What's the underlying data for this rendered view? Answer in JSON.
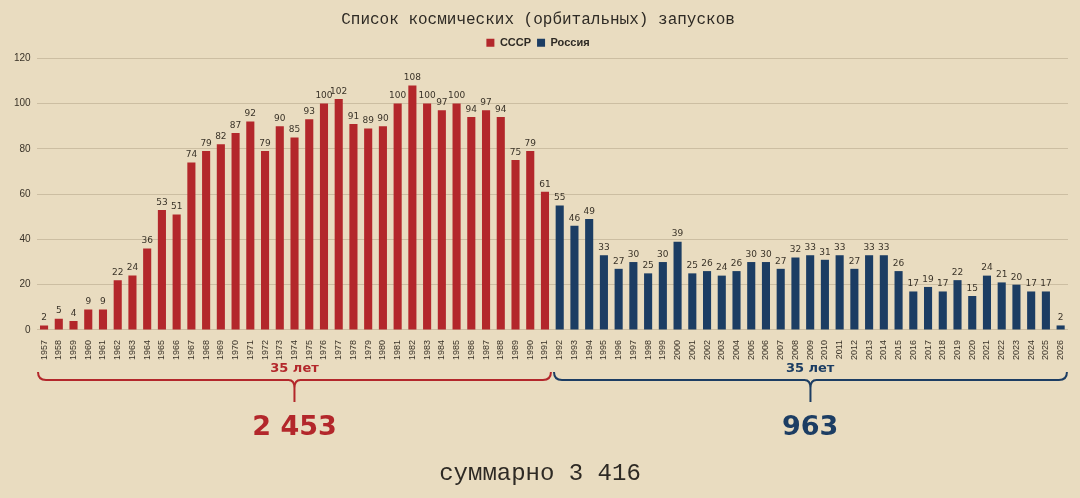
{
  "chart_data": {
    "type": "bar",
    "title": "Список космических (орбитальных) запусков",
    "categories": [
      "1957",
      "1958",
      "1959",
      "1960",
      "1961",
      "1962",
      "1963",
      "1964",
      "1965",
      "1966",
      "1967",
      "1968",
      "1969",
      "1970",
      "1971",
      "1972",
      "1973",
      "1974",
      "1975",
      "1976",
      "1977",
      "1978",
      "1979",
      "1980",
      "1981",
      "1982",
      "1983",
      "1984",
      "1985",
      "1986",
      "1987",
      "1988",
      "1989",
      "1990",
      "1991",
      "1992",
      "1993",
      "1994",
      "1995",
      "1996",
      "1997",
      "1998",
      "1999",
      "2000",
      "2001",
      "2002",
      "2003",
      "2004",
      "2005",
      "2006",
      "2007",
      "2008",
      "2009",
      "2010",
      "2011",
      "2012",
      "2013",
      "2014",
      "2015",
      "2016",
      "2017",
      "2018",
      "2019",
      "2020",
      "2021",
      "2022",
      "2023",
      "2024",
      "2025",
      "2026"
    ],
    "series": [
      {
        "name": "СССР",
        "color": "#b3272b",
        "values": [
          2,
          5,
          4,
          9,
          9,
          22,
          24,
          36,
          53,
          51,
          74,
          79,
          82,
          87,
          92,
          79,
          90,
          85,
          93,
          100,
          102,
          91,
          89,
          90,
          100,
          108,
          100,
          97,
          100,
          94,
          97,
          94,
          75,
          79,
          61,
          null,
          null,
          null,
          null,
          null,
          null,
          null,
          null,
          null,
          null,
          null,
          null,
          null,
          null,
          null,
          null,
          null,
          null,
          null,
          null,
          null,
          null,
          null,
          null,
          null,
          null,
          null,
          null,
          null,
          null,
          null,
          null,
          null,
          null,
          null
        ]
      },
      {
        "name": "Россия",
        "color": "#1c3d63",
        "values": [
          null,
          null,
          null,
          null,
          null,
          null,
          null,
          null,
          null,
          null,
          null,
          null,
          null,
          null,
          null,
          null,
          null,
          null,
          null,
          null,
          null,
          null,
          null,
          null,
          null,
          null,
          null,
          null,
          null,
          null,
          null,
          null,
          null,
          null,
          null,
          55,
          46,
          49,
          33,
          27,
          30,
          25,
          30,
          39,
          25,
          26,
          24,
          26,
          30,
          30,
          27,
          32,
          33,
          31,
          33,
          27,
          33,
          33,
          26,
          17,
          19,
          17,
          22,
          15,
          24,
          21,
          20,
          17,
          17,
          2
        ]
      }
    ],
    "ylim": [
      0,
      120
    ],
    "yticks": [
      0,
      20,
      40,
      60,
      80,
      100,
      120
    ],
    "grid": "y",
    "legend": "top",
    "data_labels": true,
    "annotations": [
      "35 лет",
      "35 лет",
      "2 453",
      "963",
      "суммарно 3 416"
    ]
  }
}
